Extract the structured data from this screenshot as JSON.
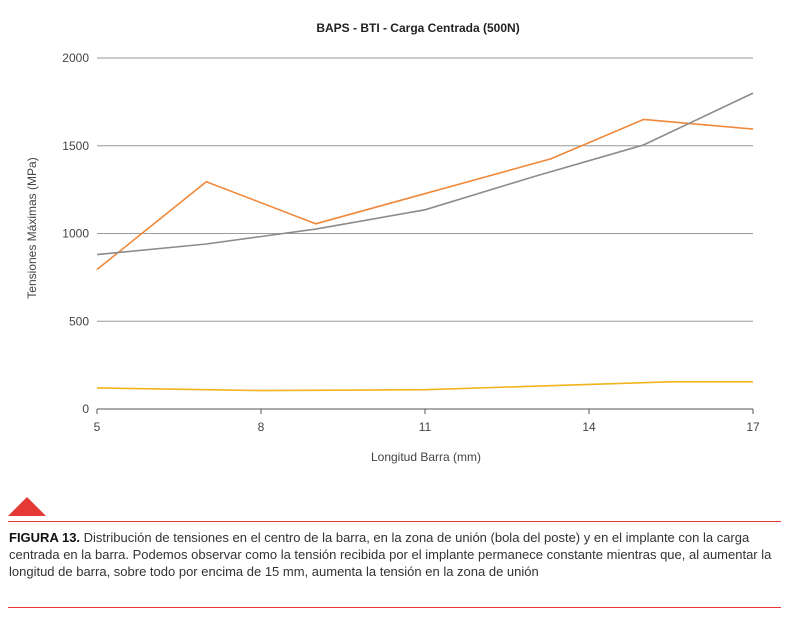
{
  "chart_data": {
    "type": "line",
    "title": "BAPS - BTI - Carga Centrada (500N)",
    "xlabel": "Longitud Barra (mm)",
    "ylabel": "Tensiones Máximas (MPa)",
    "xlim": [
      5,
      17
    ],
    "ylim": [
      0,
      2000
    ],
    "x_ticks": [
      5,
      8,
      11,
      14,
      17
    ],
    "y_ticks": [
      0,
      500,
      1000,
      1500,
      2000
    ],
    "grid": "horizontal",
    "legend": "none",
    "series": [
      {
        "color": "#f0883a",
        "x": [
          5,
          7,
          9,
          13.3,
          15,
          17
        ],
        "y": [
          795,
          1295,
          1055,
          1425,
          1650,
          1595
        ]
      },
      {
        "color": "#8c8c8c",
        "x": [
          5,
          7,
          9,
          11,
          13,
          15,
          17
        ],
        "y": [
          880,
          940,
          1025,
          1135,
          1325,
          1505,
          1800
        ]
      },
      {
        "color": "#f2b31d",
        "x": [
          5,
          7,
          8,
          11,
          13,
          15.5,
          17
        ],
        "y": [
          120,
          110,
          105,
          110,
          130,
          155,
          155
        ]
      }
    ]
  },
  "caption": {
    "label": "FIGURA 13.",
    "text": " Distribución de tensiones en el centro de la barra, en la zona de unión (bola del poste) y en el implante con la carga centrada en la barra. Podemos observar como la tensión recibida por el implante permanece constante mientras que, al aumentar la longitud de barra, sobre todo por encima de 15 mm, aumenta la tensión en la zona de unión"
  }
}
